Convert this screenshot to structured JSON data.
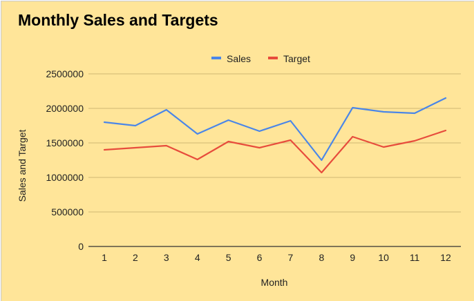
{
  "chart_data": {
    "type": "line",
    "title": "Monthly Sales and Targets",
    "xlabel": "Month",
    "ylabel": "Sales and Target",
    "categories": [
      "1",
      "2",
      "3",
      "4",
      "5",
      "6",
      "7",
      "8",
      "9",
      "10",
      "11",
      "12"
    ],
    "series": [
      {
        "name": "Sales",
        "color": "#4a86e8",
        "values": [
          1800000,
          1750000,
          1980000,
          1630000,
          1830000,
          1670000,
          1820000,
          1250000,
          2010000,
          1950000,
          1930000,
          2150000
        ]
      },
      {
        "name": "Target",
        "color": "#e74c3c",
        "values": [
          1400000,
          1430000,
          1460000,
          1260000,
          1520000,
          1430000,
          1540000,
          1070000,
          1590000,
          1440000,
          1530000,
          1680000
        ]
      }
    ],
    "ylim": [
      0,
      2500000
    ],
    "yticks": [
      0,
      500000,
      1000000,
      1500000,
      2000000,
      2500000
    ],
    "ytick_labels": [
      "0",
      "500000",
      "1000000",
      "1500000",
      "2000000",
      "2500000"
    ],
    "grid": true,
    "legend_position": "top-center",
    "colors": {
      "background": "#ffe599",
      "gridline": "#cfb872",
      "axis": "#333333"
    }
  }
}
